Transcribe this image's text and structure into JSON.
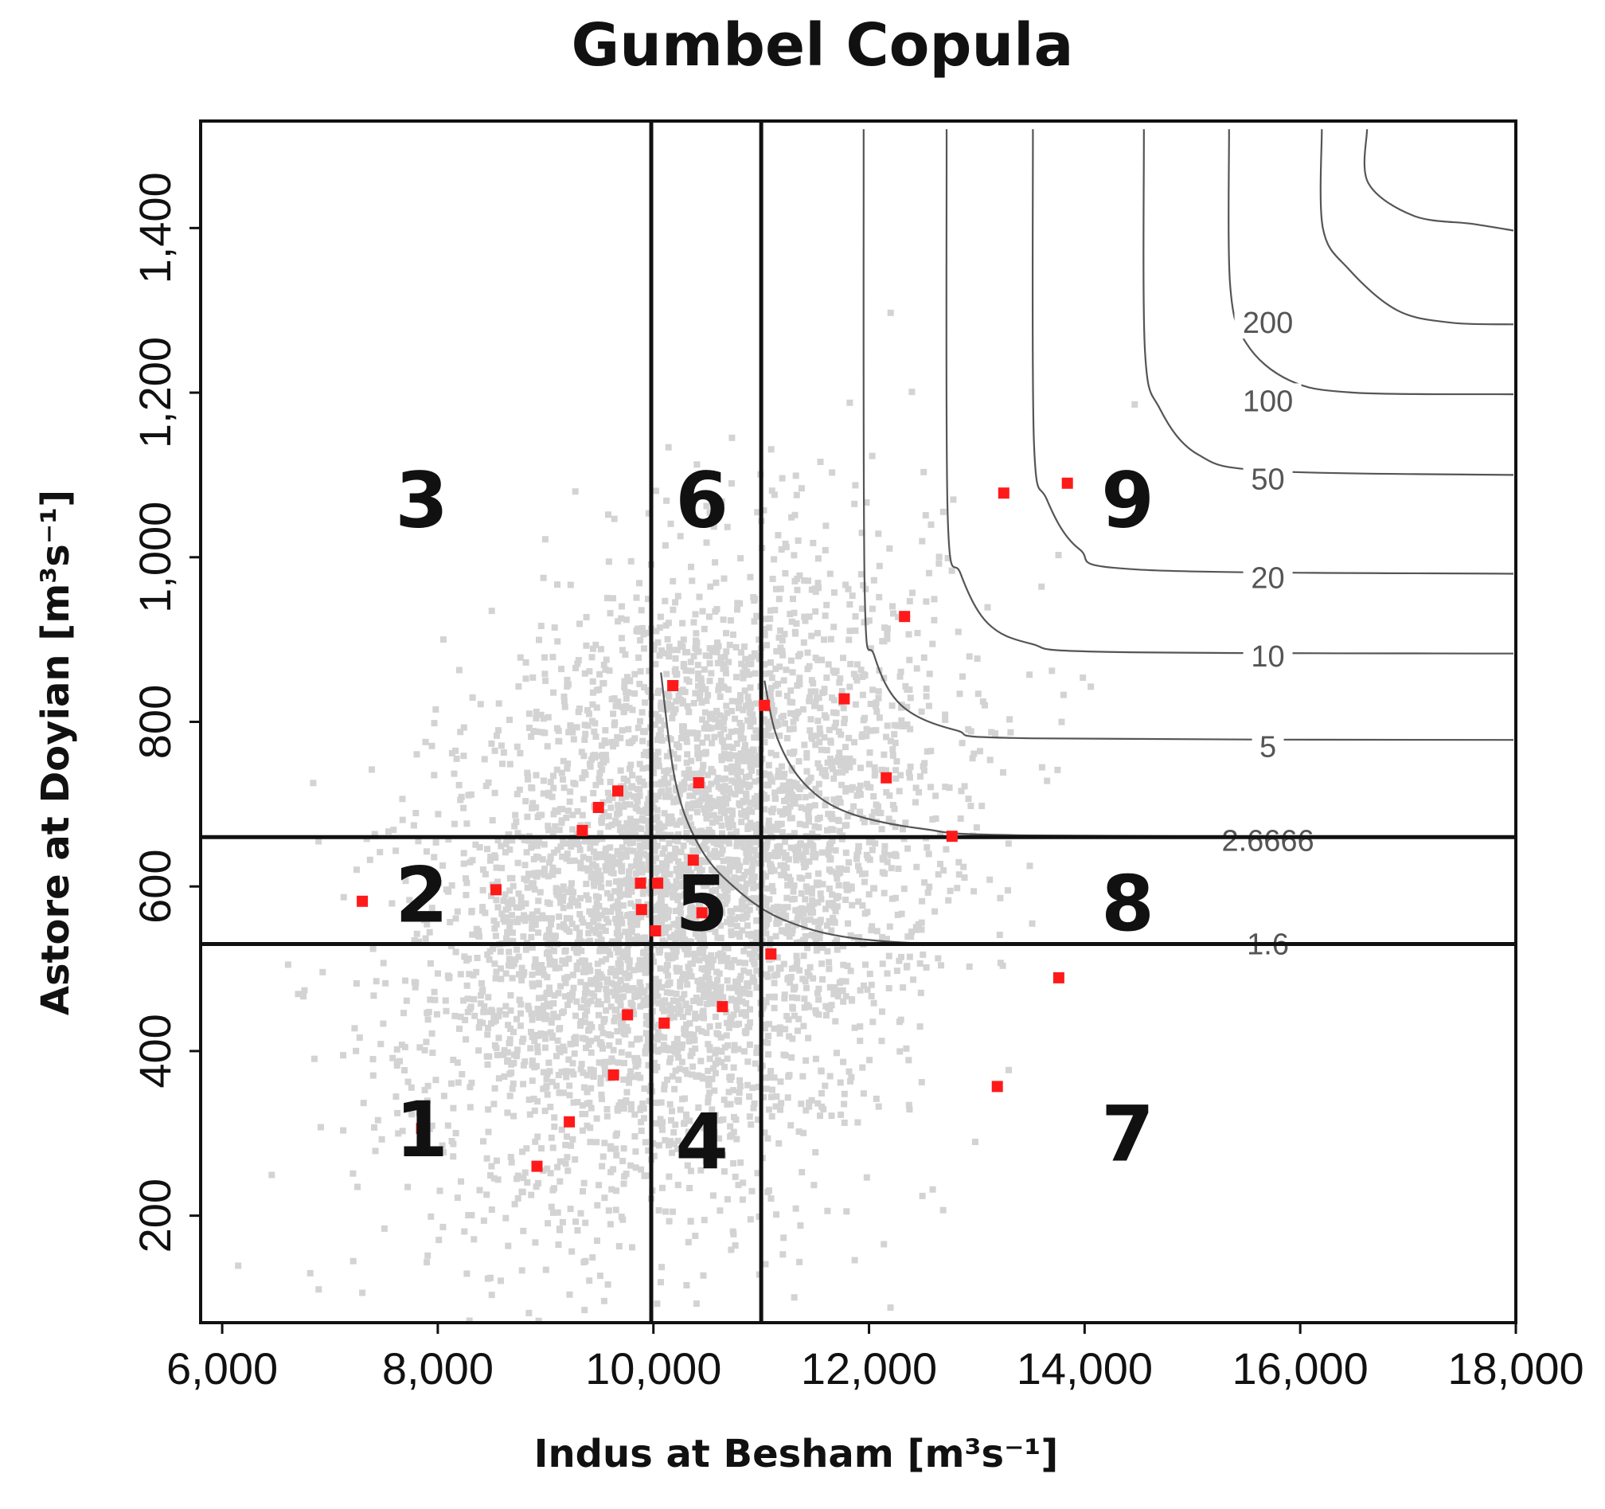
{
  "chart_data": {
    "type": "scatter",
    "title": "Gumbel Copula",
    "xlabel": "Indus at Besham [m³s⁻¹]",
    "ylabel": "Astore at Doyian [m³s⁻¹]",
    "xlim": [
      5800,
      18000
    ],
    "ylim": [
      70,
      1530
    ],
    "x_ticks": [
      6000,
      8000,
      10000,
      12000,
      14000,
      16000,
      18000
    ],
    "x_tick_labels": [
      "6,000",
      "8,000",
      "10,000",
      "12,000",
      "14,000",
      "16,000",
      "18,000"
    ],
    "y_ticks": [
      200,
      400,
      600,
      800,
      1000,
      1200,
      1400
    ],
    "y_tick_labels": [
      "200",
      "400",
      "600",
      "800",
      "1,000",
      "1,200",
      "1,400"
    ],
    "grid": false,
    "threshold_lines": {
      "vertical_x": [
        9980,
        11000
      ],
      "horizontal_y": [
        530,
        660
      ]
    },
    "regions": [
      {
        "label": "1",
        "x": 7850,
        "y": 305
      },
      {
        "label": "2",
        "x": 7850,
        "y": 590
      },
      {
        "label": "3",
        "x": 7850,
        "y": 1070
      },
      {
        "label": "4",
        "x": 10450,
        "y": 290
      },
      {
        "label": "5",
        "x": 10450,
        "y": 580
      },
      {
        "label": "6",
        "x": 10450,
        "y": 1070
      },
      {
        "label": "7",
        "x": 14400,
        "y": 300
      },
      {
        "label": "8",
        "x": 14400,
        "y": 580
      },
      {
        "label": "9",
        "x": 14400,
        "y": 1070
      }
    ],
    "return_period_contours": [
      {
        "label": "1.6",
        "label_x": 15700,
        "label_y": 530,
        "points": [
          [
            10070,
            860
          ],
          [
            10200,
            730
          ],
          [
            10400,
            655
          ],
          [
            10700,
            605
          ],
          [
            11200,
            560
          ],
          [
            12000,
            535
          ],
          [
            13500,
            530
          ],
          [
            18000,
            530
          ]
        ]
      },
      {
        "label": "2.6666",
        "label_x": 15700,
        "label_y": 656,
        "points": [
          [
            11030,
            850
          ],
          [
            11150,
            780
          ],
          [
            11400,
            725
          ],
          [
            11800,
            690
          ],
          [
            12500,
            670
          ],
          [
            13500,
            662
          ],
          [
            18000,
            660
          ]
        ]
      },
      {
        "label": "5",
        "label_x": 15700,
        "label_y": 770,
        "points": [
          [
            11950,
            1520
          ],
          [
            11960,
            960
          ],
          [
            12050,
            880
          ],
          [
            12300,
            820
          ],
          [
            12800,
            790
          ],
          [
            13500,
            780
          ],
          [
            18000,
            778
          ]
        ]
      },
      {
        "label": "10",
        "label_x": 15700,
        "label_y": 880,
        "points": [
          [
            12720,
            1520
          ],
          [
            12730,
            1050
          ],
          [
            12850,
            980
          ],
          [
            13100,
            920
          ],
          [
            13500,
            895
          ],
          [
            14200,
            885
          ],
          [
            18000,
            883
          ]
        ]
      },
      {
        "label": "20",
        "label_x": 15700,
        "label_y": 975,
        "points": [
          [
            13520,
            1520
          ],
          [
            13530,
            1140
          ],
          [
            13650,
            1070
          ],
          [
            13950,
            1010
          ],
          [
            14500,
            985
          ],
          [
            18000,
            980
          ]
        ]
      },
      {
        "label": "50",
        "label_x": 15700,
        "label_y": 1095,
        "points": [
          [
            14550,
            1520
          ],
          [
            14560,
            1250
          ],
          [
            14700,
            1180
          ],
          [
            15050,
            1125
          ],
          [
            15700,
            1105
          ],
          [
            18000,
            1100
          ]
        ]
      },
      {
        "label": "100",
        "label_x": 15700,
        "label_y": 1190,
        "points": [
          [
            15340,
            1520
          ],
          [
            15350,
            1330
          ],
          [
            15500,
            1260
          ],
          [
            15900,
            1215
          ],
          [
            16500,
            1200
          ],
          [
            18000,
            1198
          ]
        ]
      },
      {
        "label": "200",
        "label_x": 15700,
        "label_y": 1285,
        "points": [
          [
            16200,
            1520
          ],
          [
            16210,
            1400
          ],
          [
            16450,
            1350
          ],
          [
            16900,
            1300
          ],
          [
            17400,
            1285
          ],
          [
            18000,
            1283
          ]
        ]
      },
      {
        "label": "",
        "points": [
          [
            16620,
            1520
          ],
          [
            16630,
            1455
          ],
          [
            17050,
            1415
          ],
          [
            17600,
            1405
          ],
          [
            18000,
            1397
          ]
        ]
      }
    ],
    "series": [
      {
        "color": "#ff1a1a",
        "points": [
          [
            7300,
            582
          ],
          [
            7850,
            306
          ],
          [
            8540,
            596
          ],
          [
            8920,
            260
          ],
          [
            9220,
            314
          ],
          [
            9340,
            668
          ],
          [
            9490,
            696
          ],
          [
            9630,
            371
          ],
          [
            9670,
            716
          ],
          [
            9760,
            444
          ],
          [
            9880,
            604
          ],
          [
            9890,
            572
          ],
          [
            10020,
            546
          ],
          [
            10040,
            604
          ],
          [
            10100,
            434
          ],
          [
            10180,
            844
          ],
          [
            10370,
            632
          ],
          [
            10420,
            726
          ],
          [
            10450,
            568
          ],
          [
            10640,
            454
          ],
          [
            11030,
            820
          ],
          [
            11090,
            518
          ],
          [
            11770,
            828
          ],
          [
            12160,
            732
          ],
          [
            12330,
            928
          ],
          [
            12770,
            661
          ],
          [
            13190,
            357
          ],
          [
            13250,
            1078
          ],
          [
            13760,
            489
          ],
          [
            13840,
            1090
          ]
        ]
      },
      {
        "color": "#d3d3d3",
        "count": 4500,
        "mean": [
          10300,
          600
        ],
        "sd": [
          1150,
          185
        ],
        "correlation": 0.3,
        "seed": 12345
      }
    ]
  }
}
